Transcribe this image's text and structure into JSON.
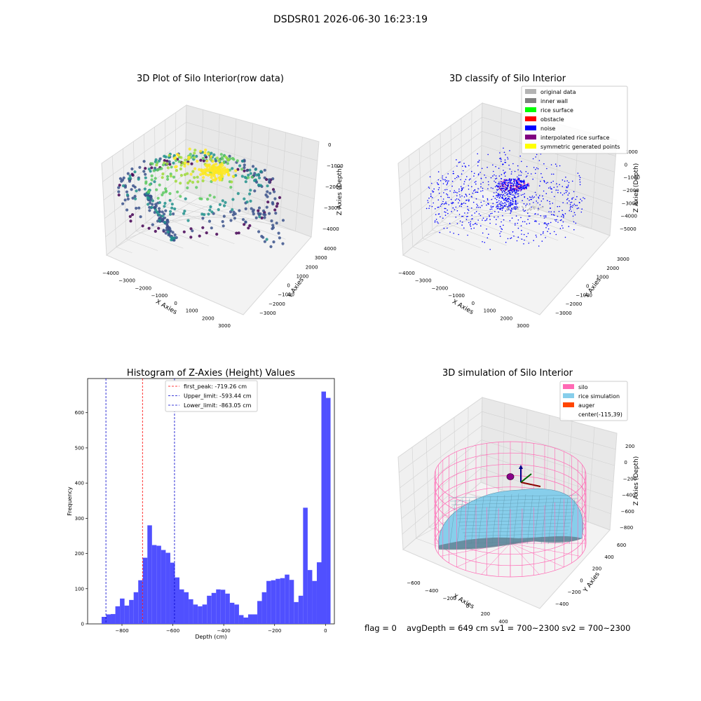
{
  "suptitle": "DSDSR01 2026-06-30 16:23:19",
  "chart_data": [
    {
      "id": "raw",
      "type": "scatter",
      "title": "3D Plot of Silo Interior(row data)",
      "xlabel": "X Axies",
      "ylabel": "Y Axies",
      "zlabel": "Z Axies (Depth)",
      "xticks": [
        "−4000",
        "−3000",
        "−2000",
        "−1000",
        "0",
        "1000",
        "2000",
        "3000"
      ],
      "yticks": [
        "−3000",
        "−2000",
        "−1000",
        "0",
        "1000",
        "2000",
        "3000",
        "4000"
      ],
      "zticks": [
        "0",
        "−1000",
        "−2000",
        "−3000",
        "−4000"
      ],
      "colormap": "viridis"
    },
    {
      "id": "classify",
      "type": "scatter",
      "title": "3D classify of Silo Interior",
      "xlabel": "X Axies",
      "ylabel": "Y Axies",
      "zlabel": "Z Axies (Depth)",
      "xticks": [
        "−4000",
        "−3000",
        "−2000",
        "−1000",
        "0",
        "1000",
        "2000",
        "3000"
      ],
      "yticks": [
        "−3000",
        "−2000",
        "−1000",
        "0",
        "1000",
        "2000",
        "3000"
      ],
      "zticks": [
        "1000",
        "0",
        "−1000",
        "−2000",
        "−3000",
        "−4000",
        "−5000"
      ],
      "legend_position": "top-right",
      "legend": [
        {
          "label": "original data",
          "color": "#b4b4b4"
        },
        {
          "label": "inner wall",
          "color": "#808080"
        },
        {
          "label": "rice surface",
          "color": "#00ff00"
        },
        {
          "label": "obstacle",
          "color": "#ff0000"
        },
        {
          "label": "noise",
          "color": "#0000ff"
        },
        {
          "label": "interpolated rice surface",
          "color": "#800080"
        },
        {
          "label": "symmetric generated points",
          "color": "#ffff00"
        }
      ]
    },
    {
      "id": "hist",
      "type": "bar",
      "title": "Histogram of Z-Axies (Height) Values",
      "xlabel": "Depth (cm)",
      "ylabel": "Frequency",
      "xlim": [
        -935,
        35
      ],
      "ylim": [
        0,
        697
      ],
      "xticks": [
        -800,
        -600,
        -400,
        -200,
        0
      ],
      "xtick_labels": [
        "−800",
        "−600",
        "−400",
        "−200",
        "0"
      ],
      "yticks": [
        0,
        100,
        200,
        300,
        400,
        500,
        600
      ],
      "bin_start": -880,
      "bin_width": 18,
      "values": [
        20,
        27,
        28,
        50,
        72,
        52,
        68,
        90,
        124,
        188,
        280,
        224,
        222,
        210,
        202,
        174,
        132,
        98,
        90,
        70,
        55,
        50,
        55,
        80,
        88,
        98,
        97,
        86,
        60,
        55,
        25,
        18,
        27,
        27,
        65,
        90,
        122,
        124,
        128,
        130,
        140,
        125,
        62,
        80,
        330,
        153,
        122,
        175,
        660,
        642
      ],
      "bar_color": "#5050ff",
      "vlines": [
        {
          "label": "first_peak: -719.26 cm",
          "x": -719.26,
          "color": "#ff0000"
        },
        {
          "label": "Upper_limit: -593.44 cm",
          "x": -593.44,
          "color": "#0000cc"
        },
        {
          "label": "Lower_limit: -863.05 cm",
          "x": -863.05,
          "color": "#0000cc"
        }
      ],
      "legend_position": "top-center"
    },
    {
      "id": "sim",
      "type": "area",
      "title": "3D simulation of Silo Interior",
      "xlabel": "X Axies",
      "ylabel": "Y Axies",
      "zlabel": "Z Axies (Depth)",
      "xticks": [
        "−600",
        "−400",
        "−200",
        "0",
        "200",
        "400"
      ],
      "yticks": [
        "−400",
        "−200",
        "0",
        "200",
        "400",
        "600"
      ],
      "zticks": [
        "200",
        "0",
        "−200",
        "−400",
        "−600",
        "−800"
      ],
      "legend_position": "top-right",
      "legend": [
        {
          "label": "silo",
          "color": "#ff69b4"
        },
        {
          "label": "rice simulation",
          "color": "#87ceeb"
        },
        {
          "label": "auger",
          "color": "#ff4500"
        },
        {
          "label": "center(-115,39)",
          "color": "none"
        }
      ]
    }
  ],
  "footer": {
    "flag": "flag = 0",
    "metrics": "avgDepth = 649 cm  sv1 = 700~2300  sv2 = 700~2300"
  }
}
